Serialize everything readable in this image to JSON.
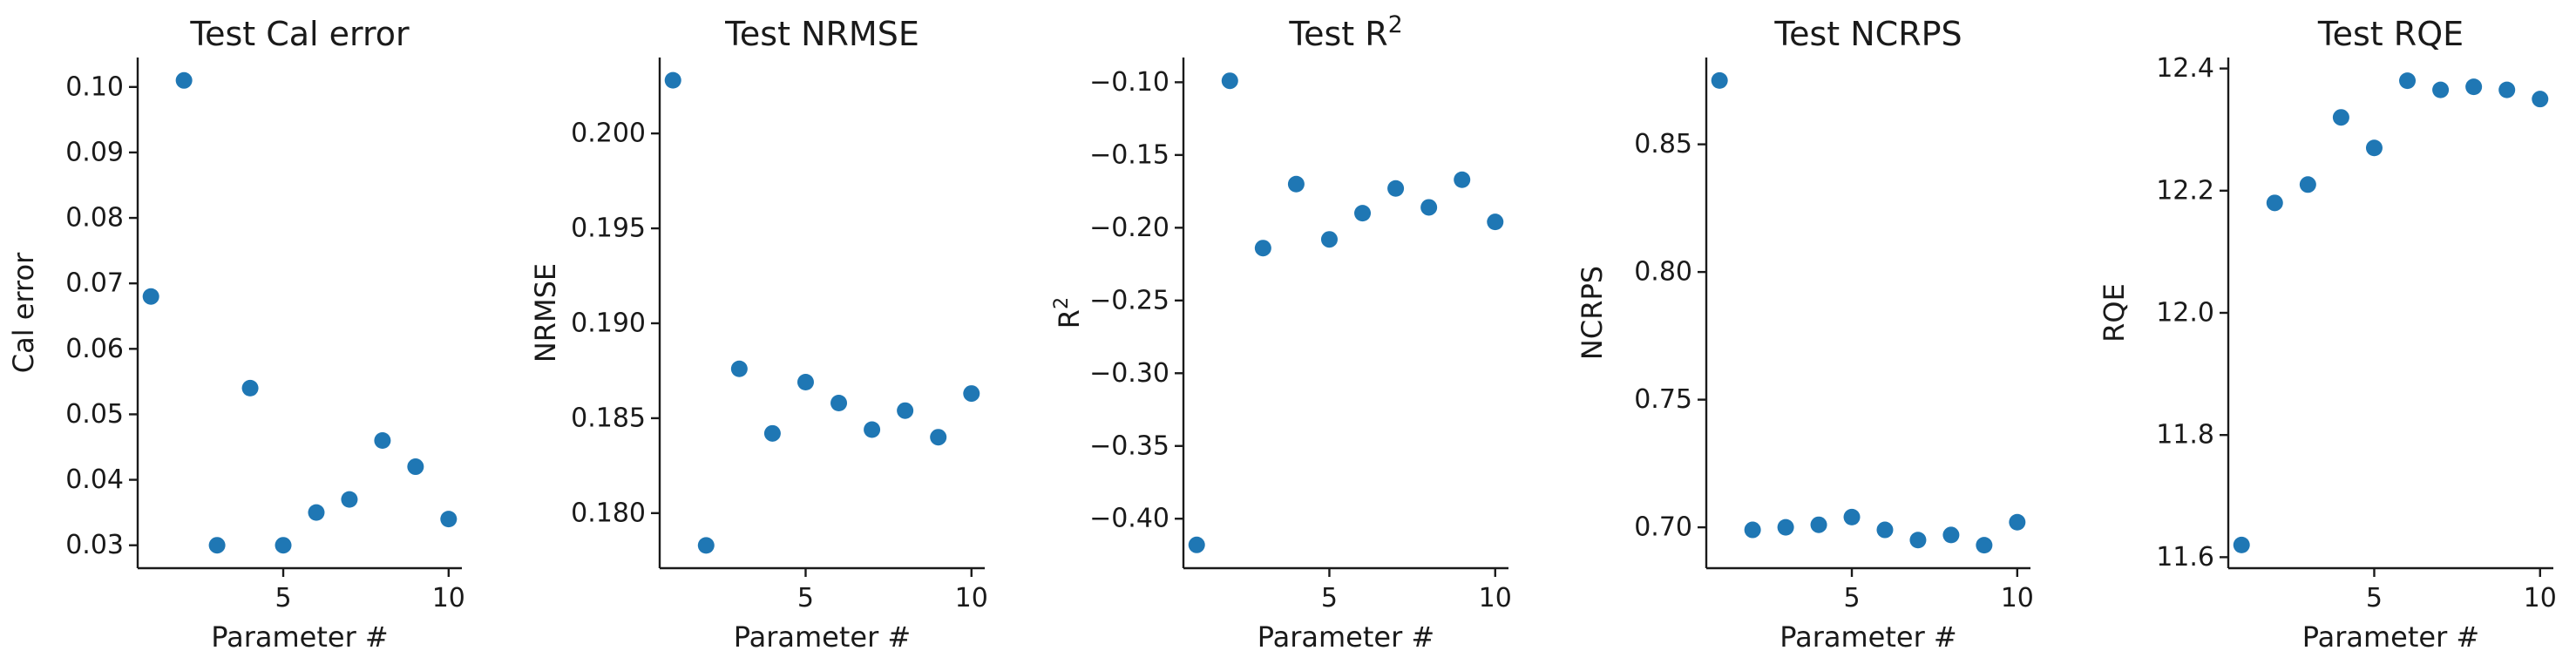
{
  "point_color": "#1f77b4",
  "chart_data": [
    {
      "type": "scatter",
      "title": "Test Cal error",
      "xlabel": "Parameter #",
      "ylabel": "Cal error",
      "x": [
        1,
        2,
        3,
        4,
        5,
        6,
        7,
        8,
        9,
        10
      ],
      "y": [
        0.068,
        0.101,
        0.03,
        0.054,
        0.03,
        0.035,
        0.037,
        0.046,
        0.042,
        0.034
      ],
      "xticks": [
        5,
        10
      ],
      "xtick_labels": [
        "5",
        "10"
      ],
      "yticks": [
        0.03,
        0.04,
        0.05,
        0.06,
        0.07,
        0.08,
        0.09,
        0.1
      ],
      "ytick_labels": [
        "0.03",
        "0.04",
        "0.05",
        "0.06",
        "0.07",
        "0.08",
        "0.09",
        "0.10"
      ],
      "xlim": [
        0.6,
        10.4
      ],
      "ylim": [
        0.0265,
        0.1045
      ],
      "grid": false
    },
    {
      "type": "scatter",
      "title": "Test NRMSE",
      "xlabel": "Parameter #",
      "ylabel": "NRMSE",
      "x": [
        1,
        2,
        3,
        4,
        5,
        6,
        7,
        8,
        9,
        10
      ],
      "y": [
        0.2028,
        0.1783,
        0.1876,
        0.1842,
        0.1869,
        0.1858,
        0.1844,
        0.1854,
        0.184,
        0.1863
      ],
      "xticks": [
        5,
        10
      ],
      "xtick_labels": [
        "5",
        "10"
      ],
      "yticks": [
        0.18,
        0.185,
        0.19,
        0.195,
        0.2
      ],
      "ytick_labels": [
        "0.180",
        "0.185",
        "0.190",
        "0.195",
        "0.200"
      ],
      "xlim": [
        0.6,
        10.4
      ],
      "ylim": [
        0.1771,
        0.204
      ],
      "grid": false
    },
    {
      "type": "scatter",
      "title": "Test R",
      "title_superscript": "2",
      "xlabel": "Parameter #",
      "ylabel": "R",
      "ylabel_superscript": "2",
      "x": [
        1,
        2,
        3,
        4,
        5,
        6,
        7,
        8,
        9,
        10
      ],
      "y": [
        -0.418,
        -0.099,
        -0.214,
        -0.17,
        -0.208,
        -0.19,
        -0.173,
        -0.186,
        -0.167,
        -0.196
      ],
      "xticks": [
        5,
        10
      ],
      "xtick_labels": [
        "5",
        "10"
      ],
      "yticks": [
        -0.4,
        -0.35,
        -0.3,
        -0.25,
        -0.2,
        -0.15,
        -0.1
      ],
      "ytick_labels": [
        "−0.40",
        "−0.35",
        "−0.30",
        "−0.25",
        "−0.20",
        "−0.15",
        "−0.10"
      ],
      "xlim": [
        0.6,
        10.4
      ],
      "ylim": [
        -0.434,
        -0.083
      ],
      "grid": false
    },
    {
      "type": "scatter",
      "title": "Test NCRPS",
      "xlabel": "Parameter #",
      "ylabel": "NCRPS",
      "x": [
        1,
        2,
        3,
        4,
        5,
        6,
        7,
        8,
        9,
        10
      ],
      "y": [
        0.875,
        0.699,
        0.7,
        0.701,
        0.704,
        0.699,
        0.695,
        0.697,
        0.693,
        0.702
      ],
      "xticks": [
        5,
        10
      ],
      "xtick_labels": [
        "5",
        "10"
      ],
      "yticks": [
        0.7,
        0.75,
        0.8,
        0.85
      ],
      "ytick_labels": [
        "0.70",
        "0.75",
        "0.80",
        "0.85"
      ],
      "xlim": [
        0.6,
        10.4
      ],
      "ylim": [
        0.684,
        0.884
      ],
      "grid": false
    },
    {
      "type": "scatter",
      "title": "Test RQE",
      "xlabel": "Parameter #",
      "ylabel": "RQE",
      "x": [
        1,
        2,
        3,
        4,
        5,
        6,
        7,
        8,
        9,
        10
      ],
      "y": [
        11.62,
        12.18,
        12.21,
        12.32,
        12.27,
        12.38,
        12.365,
        12.37,
        12.365,
        12.35
      ],
      "xticks": [
        5,
        10
      ],
      "xtick_labels": [
        "5",
        "10"
      ],
      "yticks": [
        11.6,
        11.8,
        12.0,
        12.2,
        12.4
      ],
      "ytick_labels": [
        "11.6",
        "11.8",
        "12.0",
        "12.2",
        "12.4"
      ],
      "xlim": [
        0.6,
        10.4
      ],
      "ylim": [
        11.582,
        12.418
      ],
      "grid": false
    }
  ]
}
